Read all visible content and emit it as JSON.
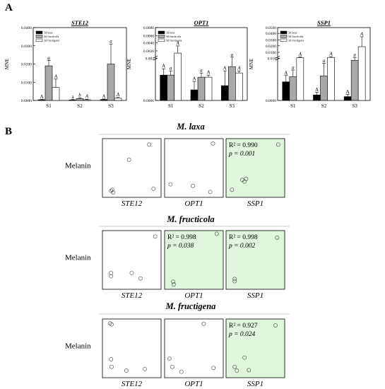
{
  "panel_a_label": "A",
  "panel_b_label": "B",
  "chart_data": [
    {
      "type": "bar",
      "title": "STE12",
      "ylabel": "MNE",
      "categories": [
        "S1",
        "S2",
        "S3"
      ],
      "ylim": [
        0,
        0.04
      ],
      "yticks": [
        "0.0000",
        "0.0100",
        "0.0200",
        "0.0300",
        "0.0400"
      ],
      "legend": [
        "3d laxa",
        "3d fructicola",
        "3d fructigena"
      ],
      "series": [
        {
          "name": "3d laxa",
          "values": [
            0.0004,
            0.0003,
            0.0005
          ],
          "errors": [
            0.0002,
            0.0002,
            0.0003
          ],
          "letters": [
            "A",
            "a",
            "A"
          ]
        },
        {
          "name": "3d fructicola",
          "values": [
            0.019,
            0.001,
            0.02
          ],
          "errors": [
            0.003,
            0.0005,
            0.011
          ],
          "letters": [
            "a",
            "b",
            "a"
          ]
        },
        {
          "name": "3d fructigena",
          "values": [
            0.0072,
            0.0004,
            0.0012
          ],
          "errors": [
            0.0045,
            0.0003,
            0.0005
          ],
          "letters": [
            "A",
            "A",
            "A"
          ]
        }
      ]
    },
    {
      "type": "bar",
      "title": "OPT1",
      "ylabel": "MNE",
      "categories": [
        "S1",
        "S2",
        "S3"
      ],
      "ylim": [
        0,
        0.008
      ],
      "axis_break": true,
      "yticks": [
        "0.0000",
        "0.002",
        "0.0020",
        "0.0040",
        "0.0060",
        "0.0080"
      ],
      "legend": [
        "3d laxa",
        "3d fructicola",
        "3d fructigena"
      ],
      "series": [
        {
          "name": "3d laxa",
          "values": [
            0.0012,
            0.0005,
            0.0007
          ],
          "errors": [
            0.0003,
            0.0004,
            0.0007
          ],
          "letters": [
            "A",
            "A",
            "A"
          ]
        },
        {
          "name": "3d fructicola",
          "values": [
            0.0012,
            0.0011,
            0.0016
          ],
          "errors": [
            0.0002,
            0.0002,
            0.0006
          ],
          "letters": [
            "a",
            "a",
            "a"
          ]
        },
        {
          "name": "3d fructigena",
          "values": [
            0.003,
            0.0011,
            0.0013
          ],
          "errors": [
            0.0014,
            0.0001,
            0.0001
          ],
          "letters": [
            "A",
            "A",
            "A"
          ]
        }
      ]
    },
    {
      "type": "bar",
      "title": "SSP1",
      "ylabel": "MNE",
      "categories": [
        "S1",
        "S2",
        "S3"
      ],
      "ylim": [
        0,
        0.05
      ],
      "axis_break": true,
      "yticks": [
        "0.0000",
        "0.010",
        "0.0100",
        "0.0200",
        "0.0300",
        "0.0400",
        "0.0500"
      ],
      "legend": [
        "3d laxa",
        "3d fructicola",
        "3d fructigena"
      ],
      "series": [
        {
          "name": "3d laxa",
          "values": [
            0.0044,
            0.0013,
            0.0009
          ],
          "errors": [
            0.0015,
            0.0006,
            0.0005
          ],
          "letters": [
            "A",
            "A",
            "A"
          ]
        },
        {
          "name": "3d fructicola",
          "values": [
            0.0056,
            0.0058,
            0.0095
          ],
          "errors": [
            0.0016,
            0.003,
            0.0015
          ],
          "letters": [
            "a",
            "a",
            "a"
          ]
        },
        {
          "name": "3d fructigena",
          "values": [
            0.0106,
            0.011,
            0.025
          ],
          "errors": [
            0.001,
            0.001,
            0.013
          ],
          "letters": [
            "A",
            "A",
            "A"
          ]
        }
      ]
    },
    {
      "type": "scatter",
      "title": "M. laxa",
      "ylabel": "Melanin",
      "plots": [
        {
          "xlabel": "STE12",
          "highlight": false,
          "r2": "",
          "p": "",
          "points": [
            [
              0.12,
              0.08
            ],
            [
              0.16,
              0.05
            ],
            [
              0.14,
              0.1
            ],
            [
              0.45,
              0.65
            ],
            [
              0.82,
              0.93
            ],
            [
              0.9,
              0.12
            ]
          ]
        },
        {
          "xlabel": "OPT1",
          "highlight": false,
          "r2": "",
          "p": "",
          "points": [
            [
              0.07,
              0.2
            ],
            [
              0.48,
              0.17
            ],
            [
              0.8,
              0.06
            ],
            [
              0.85,
              0.95
            ]
          ]
        },
        {
          "xlabel": "SSP1",
          "highlight": true,
          "r2": "R² = 0.990",
          "p": "p = 0.001",
          "points": [
            [
              0.07,
              0.1
            ],
            [
              0.26,
              0.28
            ],
            [
              0.3,
              0.25
            ],
            [
              0.33,
              0.3
            ],
            [
              0.92,
              0.93
            ]
          ]
        }
      ]
    },
    {
      "type": "scatter",
      "title": "M. fructicola",
      "ylabel": "Melanin",
      "plots": [
        {
          "xlabel": "STE12",
          "highlight": false,
          "r2": "",
          "p": "",
          "points": [
            [
              0.12,
              0.26
            ],
            [
              0.12,
              0.2
            ],
            [
              0.5,
              0.26
            ],
            [
              0.66,
              0.16
            ],
            [
              0.93,
              0.93
            ]
          ]
        },
        {
          "xlabel": "OPT1",
          "highlight": true,
          "r2": "R² = 0.998",
          "p": "p = 0.038",
          "points": [
            [
              0.12,
              0.1
            ],
            [
              0.13,
              0.05
            ],
            [
              0.92,
              0.98
            ]
          ]
        },
        {
          "xlabel": "SSP1",
          "highlight": true,
          "r2": "R² = 0.998",
          "p": "p = 0.002",
          "points": [
            [
              0.12,
              0.15
            ],
            [
              0.12,
              0.11
            ],
            [
              0.9,
              0.91
            ]
          ]
        }
      ]
    },
    {
      "type": "scatter",
      "title": "M. fructigena",
      "ylabel": "Melanin",
      "plots": [
        {
          "xlabel": "STE12",
          "highlight": false,
          "r2": "",
          "p": "",
          "points": [
            [
              0.1,
              0.96
            ],
            [
              0.13,
              0.94
            ],
            [
              0.12,
              0.3
            ],
            [
              0.13,
              0.16
            ],
            [
              0.4,
              0.09
            ],
            [
              0.74,
              0.12
            ]
          ]
        },
        {
          "xlabel": "OPT1",
          "highlight": false,
          "r2": "",
          "p": "",
          "points": [
            [
              0.05,
              0.31
            ],
            [
              0.1,
              0.16
            ],
            [
              0.27,
              0.07
            ],
            [
              0.68,
              0.95
            ],
            [
              0.86,
              0.14
            ]
          ]
        },
        {
          "xlabel": "SSP1",
          "highlight": true,
          "r2": "R² = 0.927",
          "p": "p = 0.024",
          "points": [
            [
              0.12,
              0.16
            ],
            [
              0.16,
              0.09
            ],
            [
              0.3,
              0.33
            ],
            [
              0.38,
              0.1
            ],
            [
              0.87,
              0.92
            ]
          ]
        }
      ]
    }
  ],
  "colors": {
    "laxa": "#000000",
    "fructicola": "#a9a9a9",
    "fructigena": "#ffffff",
    "highlight": "#dff5dc",
    "axis": "#000000",
    "error": "#000000"
  }
}
